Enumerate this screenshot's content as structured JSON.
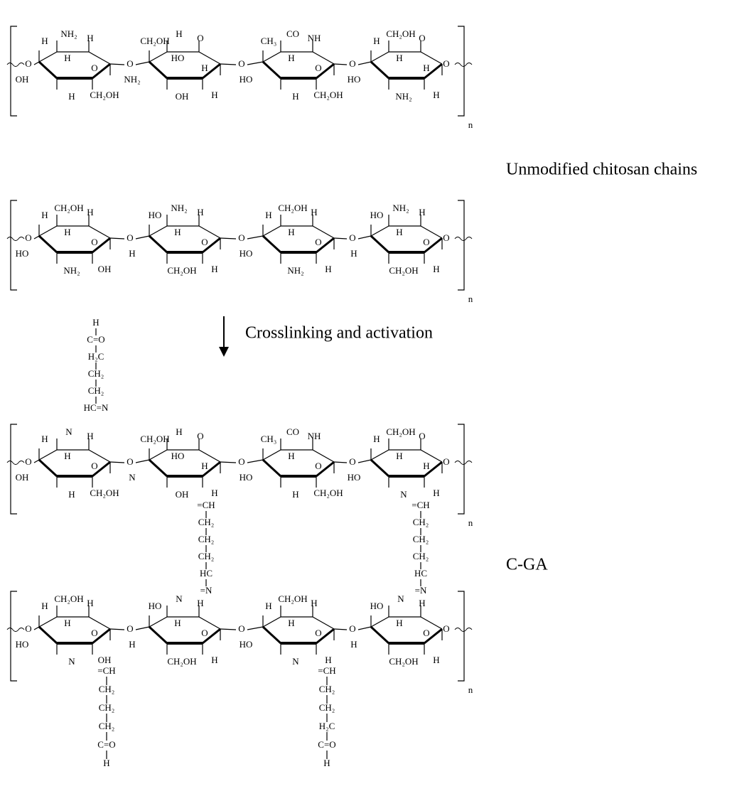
{
  "captions": [
    "Unmodified chitosan chains",
    "C-GA"
  ],
  "arrow_label": "Crosslinking and activation",
  "chains": [
    {
      "bonds": [
        "O",
        "O",
        "O",
        "O",
        "O"
      ],
      "subscript": "n",
      "rings": [
        [
          "H",
          "NH₂",
          "H",
          "H",
          "O",
          "OH",
          "H",
          "CH₂OH"
        ],
        [
          "CH₂OH",
          "H",
          "O",
          "HO",
          "H",
          "NH₂",
          "OH",
          "H"
        ],
        [
          "CH₃",
          "CO",
          "NH",
          "H",
          "O",
          "HO",
          "H",
          "CH₂OH"
        ],
        [
          "H",
          "CH₂OH",
          "O",
          "H",
          "H",
          "HO",
          "NH₂",
          "H"
        ]
      ]
    },
    {
      "bonds": [
        "O",
        "O",
        "O",
        "O",
        "O"
      ],
      "subscript": "n",
      "rings": [
        [
          "H",
          "CH₂OH",
          "H",
          "H",
          "O",
          "HO",
          "NH₂",
          "OH"
        ],
        [
          "HO",
          "NH₂",
          "H",
          "H",
          "O",
          "H",
          "CH₂OH",
          "H"
        ],
        [
          "H",
          "CH₂OH",
          "H",
          "H",
          "O",
          "HO",
          "NH₂",
          "H"
        ],
        [
          "HO",
          "NH₂",
          "H",
          "H",
          "O",
          "H",
          "CH₂OH",
          "H"
        ]
      ]
    },
    {
      "bonds": [
        "O",
        "O",
        "O",
        "O",
        "O"
      ],
      "subscript": "n",
      "rings": [
        [
          "H",
          "N",
          "H",
          "H",
          "O",
          "OH",
          "H",
          "CH₂OH"
        ],
        [
          "CH₂OH",
          "H",
          "O",
          "HO",
          "H",
          "N",
          "OH",
          "H"
        ],
        [
          "CH₃",
          "CO",
          "NH",
          "H",
          "O",
          "HO",
          "H",
          "CH₂OH"
        ],
        [
          "H",
          "CH₂OH",
          "O",
          "H",
          "H",
          "HO",
          "N",
          "H"
        ]
      ]
    },
    {
      "bonds": [
        "O",
        "O",
        "O",
        "O",
        "O"
      ],
      "subscript": "n",
      "rings": [
        [
          "H",
          "CH₂OH",
          "H",
          "H",
          "O",
          "HO",
          "N",
          "OH"
        ],
        [
          "HO",
          "N",
          "H",
          "H",
          "O",
          "H",
          "CH₂OH",
          "H"
        ],
        [
          "H",
          "CH₂OH",
          "H",
          "H",
          "O",
          "HO",
          "N",
          "H"
        ],
        [
          "HO",
          "N",
          "H",
          "H",
          "O",
          "H",
          "CH₂OH",
          "H"
        ]
      ]
    }
  ],
  "links": [
    [
      "H",
      "C=O",
      "H₂C",
      "CH₂",
      "CH₂",
      "HC=N"
    ],
    [
      "=CH",
      "CH₂",
      "CH₂",
      "CH₂",
      "HC",
      "=N"
    ],
    [
      "=CH",
      "CH₂",
      "CH₂",
      "CH₂",
      "HC",
      "=N"
    ],
    [
      "=CH",
      "CH₂",
      "CH₂",
      "CH₂",
      "C=O",
      "H"
    ],
    [
      "=CH",
      "CH₂",
      "CH₂",
      "H₂C",
      "C=O",
      "H"
    ]
  ]
}
